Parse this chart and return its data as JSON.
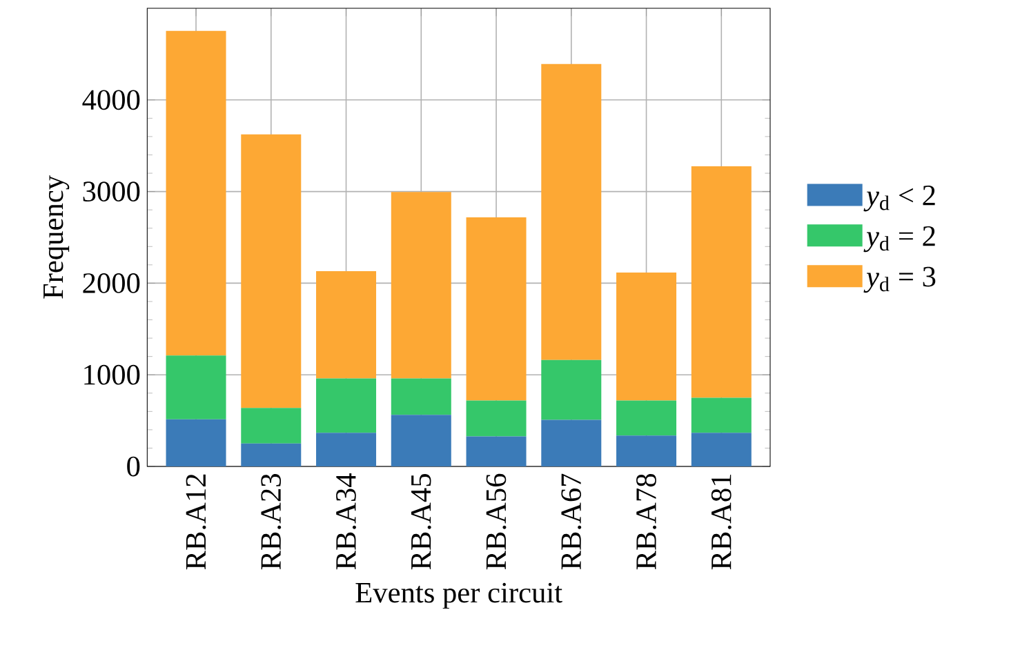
{
  "chart_data": {
    "type": "bar",
    "stacked": true,
    "xlabel": "Events per circuit",
    "ylabel": "Frequency",
    "categories": [
      "RB.A12",
      "RB.A23",
      "RB.A34",
      "RB.A45",
      "RB.A56",
      "RB.A67",
      "RB.A78",
      "RB.A81"
    ],
    "series": [
      {
        "name": "*y*$_{d}$ < 2",
        "color": "#3b7bb8",
        "values": [
          513,
          251,
          367,
          563,
          327,
          508,
          337,
          367
        ]
      },
      {
        "name": "*y*$_{d}$ = 2",
        "color": "#35c76a",
        "values": [
          698,
          387,
          593,
          397,
          392,
          653,
          382,
          382
        ]
      },
      {
        "name": "*y*$_{d}$ = 3",
        "color": "#fda834",
        "values": [
          3543,
          2985,
          1171,
          2035,
          2000,
          3231,
          1397,
          2527
        ]
      }
    ],
    "ylim": [
      0,
      5000
    ],
    "yticks": [
      0,
      1000,
      2000,
      3000,
      4000
    ],
    "grid": true,
    "legend": "right"
  }
}
